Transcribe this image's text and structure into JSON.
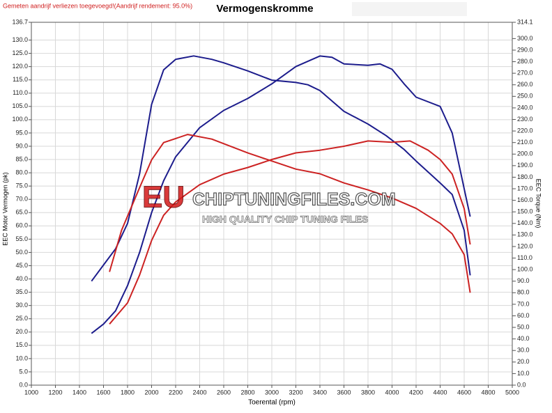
{
  "chart_data": {
    "type": "line",
    "title": "Vermogenskromme",
    "annotation": "Gemeten aandrijf verliezen toegevoegd!(Aandrijf rendement: 95.0%)",
    "watermark": {
      "logo": "EU",
      "site": "CHIPTUNINGFILES.COM",
      "tagline": "HIGH QUALITY CHIP TUNING FILES"
    },
    "x_label": "Toerental (rpm)",
    "y_label": "EEC Motor Vermogen (pk)",
    "y2_label": "EEC Torque (Nm)",
    "xlim": [
      1000,
      5000
    ],
    "xticks": [
      1000,
      1200,
      1400,
      1600,
      1800,
      2000,
      2200,
      2400,
      2600,
      2800,
      3000,
      3200,
      3400,
      3600,
      3800,
      4000,
      4200,
      4400,
      4600,
      4800,
      5000
    ],
    "ylim": [
      0,
      136.7
    ],
    "yticks": [
      {
        "value": 0,
        "label": "0.0"
      },
      {
        "value": 5,
        "label": "5.0"
      },
      {
        "value": 10,
        "label": "10.0"
      },
      {
        "value": 15,
        "label": "15.0"
      },
      {
        "value": 20,
        "label": "20.0"
      },
      {
        "value": 25,
        "label": "25.0"
      },
      {
        "value": 30,
        "label": "30.0"
      },
      {
        "value": 35,
        "label": "35.0"
      },
      {
        "value": 40,
        "label": "40.0"
      },
      {
        "value": 45,
        "label": "45.0"
      },
      {
        "value": 50,
        "label": "50.0"
      },
      {
        "value": 55,
        "label": "55.0"
      },
      {
        "value": 60,
        "label": "60.0"
      },
      {
        "value": 65,
        "label": "65.0"
      },
      {
        "value": 70,
        "label": "70.0"
      },
      {
        "value": 75,
        "label": "75.0"
      },
      {
        "value": 80,
        "label": "80.0"
      },
      {
        "value": 85,
        "label": "85.0"
      },
      {
        "value": 90,
        "label": "90.0"
      },
      {
        "value": 95,
        "label": "95.0"
      },
      {
        "value": 100,
        "label": "100.0"
      },
      {
        "value": 105,
        "label": "105.0"
      },
      {
        "value": 110,
        "label": "110.0"
      },
      {
        "value": 115,
        "label": "115.0"
      },
      {
        "value": 120,
        "label": "120.0"
      },
      {
        "value": 125,
        "label": "125.0"
      },
      {
        "value": 130,
        "label": "130.0"
      },
      {
        "value": 136.7,
        "label": "136.7"
      }
    ],
    "y2lim": [
      0,
      314.1
    ],
    "y2ticks": [
      {
        "value": 0,
        "label": "0.0"
      },
      {
        "value": 10,
        "label": "10.0"
      },
      {
        "value": 20,
        "label": "20.0"
      },
      {
        "value": 30,
        "label": "30.0"
      },
      {
        "value": 40,
        "label": "40.0"
      },
      {
        "value": 50,
        "label": "50.0"
      },
      {
        "value": 60,
        "label": "60.0"
      },
      {
        "value": 70,
        "label": "70.0"
      },
      {
        "value": 80,
        "label": "80.0"
      },
      {
        "value": 90,
        "label": "90.0"
      },
      {
        "value": 100,
        "label": "100.0"
      },
      {
        "value": 110,
        "label": "110.0"
      },
      {
        "value": 120,
        "label": "120.0"
      },
      {
        "value": 130,
        "label": "130.0"
      },
      {
        "value": 140,
        "label": "140.0"
      },
      {
        "value": 150,
        "label": "150.0"
      },
      {
        "value": 160,
        "label": "160.0"
      },
      {
        "value": 170,
        "label": "170.0"
      },
      {
        "value": 180,
        "label": "180.0"
      },
      {
        "value": 190,
        "label": "190.0"
      },
      {
        "value": 200,
        "label": "200.0"
      },
      {
        "value": 210,
        "label": "210.0"
      },
      {
        "value": 220,
        "label": "220.0"
      },
      {
        "value": 230,
        "label": "230.0"
      },
      {
        "value": 240,
        "label": "240.0"
      },
      {
        "value": 250,
        "label": "250.0"
      },
      {
        "value": 260,
        "label": "260.0"
      },
      {
        "value": 270,
        "label": "270.0"
      },
      {
        "value": 280,
        "label": "280.0"
      },
      {
        "value": 290,
        "label": "290.0"
      },
      {
        "value": 300,
        "label": "300.0"
      },
      {
        "value": 314.1,
        "label": "314.1"
      }
    ],
    "grid": true,
    "series": [
      {
        "color": "#1c1c8c",
        "axis": "y",
        "x": [
          1500,
          1600,
          1700,
          1800,
          1900,
          2000,
          2100,
          2200,
          2400,
          2600,
          2800,
          3000,
          3200,
          3400,
          3500,
          3600,
          3800,
          3900,
          4000,
          4100,
          4200,
          4400,
          4500,
          4600,
          4650
        ],
        "values": [
          19.5,
          23,
          28,
          37.5,
          50,
          65,
          77,
          86,
          97,
          103.5,
          108,
          113.5,
          120,
          124,
          123.5,
          121,
          120.5,
          121,
          119,
          113.5,
          108.5,
          105,
          95,
          74,
          63.5
        ]
      },
      {
        "color": "#1c1c8c",
        "axis": "y2",
        "x": [
          1500,
          1600,
          1700,
          1800,
          1900,
          1950,
          2000,
          2100,
          2200,
          2350,
          2500,
          2600,
          2800,
          3000,
          3200,
          3300,
          3400,
          3600,
          3800,
          3950,
          4100,
          4200,
          4400,
          4500,
          4600,
          4650
        ],
        "values": [
          90,
          104,
          118,
          140,
          183,
          213,
          243,
          273,
          282,
          285,
          282,
          279,
          272,
          264,
          262,
          260,
          255,
          237,
          226,
          216,
          204,
          194,
          175,
          165,
          134,
          95
        ]
      },
      {
        "color": "#cc2222",
        "axis": "y",
        "x": [
          1650,
          1800,
          1900,
          2000,
          2100,
          2200,
          2400,
          2600,
          2800,
          3000,
          3200,
          3400,
          3600,
          3800,
          4000,
          4150,
          4300,
          4400,
          4500,
          4600,
          4650
        ],
        "values": [
          23,
          31,
          41.5,
          54.5,
          64,
          69,
          75.5,
          79.5,
          82,
          85,
          87.5,
          88.5,
          90,
          92,
          91.5,
          92,
          88.5,
          85,
          79.5,
          66.5,
          53
        ]
      },
      {
        "color": "#cc2222",
        "axis": "y2",
        "x": [
          1650,
          1750,
          1900,
          2000,
          2100,
          2300,
          2500,
          2800,
          3000,
          3200,
          3400,
          3600,
          3800,
          4000,
          4200,
          4400,
          4500,
          4600,
          4650
        ],
        "values": [
          98,
          134,
          171,
          195,
          210,
          217,
          213,
          201,
          194,
          187,
          183,
          175,
          169,
          162,
          153,
          140,
          131,
          113,
          80
        ]
      }
    ]
  }
}
